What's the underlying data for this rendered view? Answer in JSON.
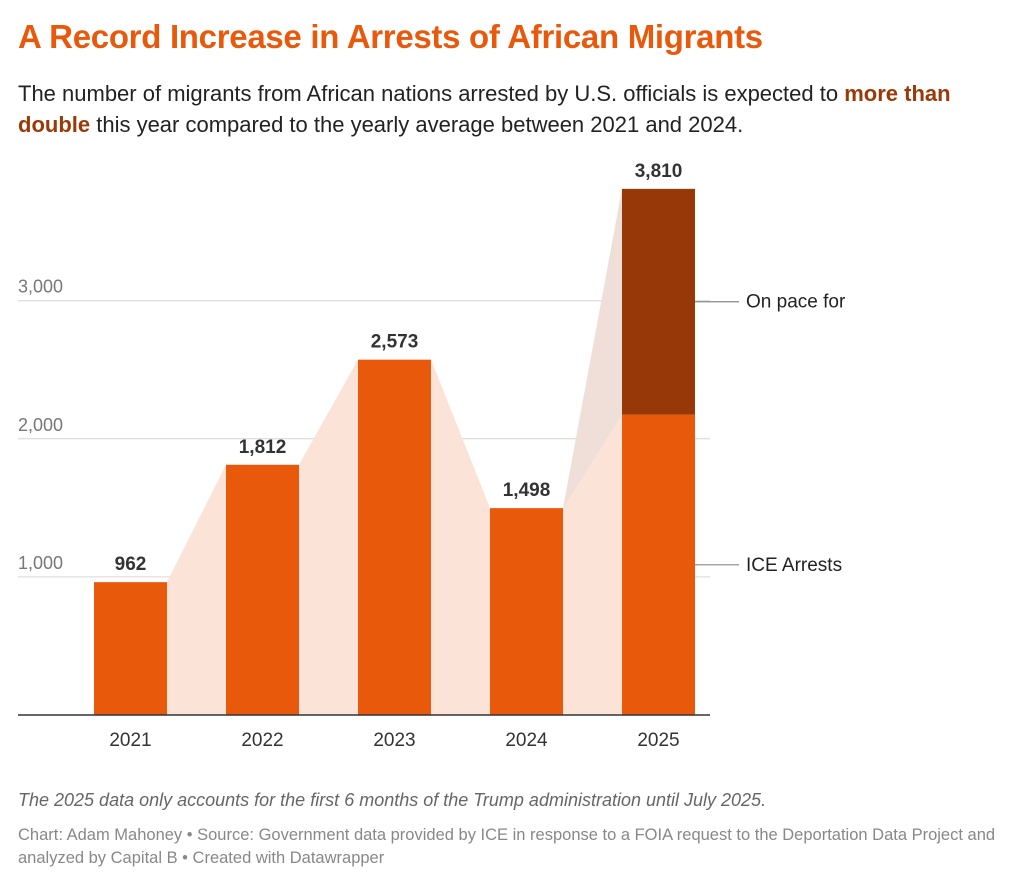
{
  "header": {
    "title": "A Record Increase in Arrests of African Migrants",
    "subtitle_pre": "The number of migrants from African nations arrested by U.S. officials is expected to ",
    "subtitle_bold": "more than double",
    "subtitle_post": " this year compared to the yearly average between 2021 and 2024."
  },
  "chart_data": {
    "type": "bar",
    "stacked": true,
    "categories": [
      "2021",
      "2022",
      "2023",
      "2024",
      "2025"
    ],
    "series": [
      {
        "name": "ICE Arrests",
        "values": [
          962,
          1812,
          2573,
          1498,
          2175
        ],
        "color": "#e8590c"
      },
      {
        "name": "On pace for",
        "values": [
          0,
          0,
          0,
          0,
          1635
        ],
        "color": "#973808"
      }
    ],
    "totals": [
      962,
      1812,
      2573,
      1498,
      3810
    ],
    "data_labels": [
      "962",
      "1,812",
      "2,573",
      "1,498",
      "3,810"
    ],
    "y_ticks": [
      {
        "value": 1000,
        "label": "1,000"
      },
      {
        "value": 2000,
        "label": "2,000"
      },
      {
        "value": 3000,
        "label": "3,000"
      }
    ],
    "ylim": [
      0,
      3810
    ],
    "grid": true,
    "area_color": "#fbe3d8",
    "projection_area_color": "#efdfd8",
    "legend": "right, inline labels"
  },
  "footer": {
    "note": "The 2025 data only accounts for the first 6 months of the Trump administration until July 2025.",
    "credit": "Chart: Adam Mahoney • Source: Government data provided by ICE in response to a FOIA request to the Deportation Data Project and analyzed by Capital B • Created with Datawrapper"
  }
}
